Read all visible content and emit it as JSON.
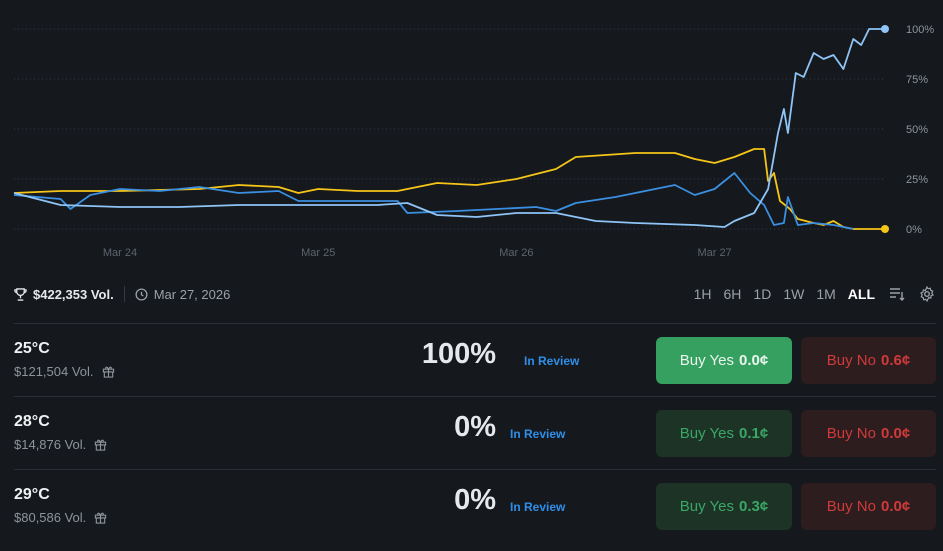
{
  "chart_data": {
    "type": "line",
    "x_unit": "days since Mar 24",
    "xlim": [
      -0.535,
      3.86
    ],
    "ylim": [
      0,
      100
    ],
    "y_ticks": [
      {
        "v": 0,
        "label": "0%"
      },
      {
        "v": 25,
        "label": "25%"
      },
      {
        "v": 50,
        "label": "50%"
      },
      {
        "v": 75,
        "label": "75%"
      },
      {
        "v": 100,
        "label": "100%"
      }
    ],
    "x_ticks": [
      {
        "v": 0,
        "label": "Mar 24"
      },
      {
        "v": 1,
        "label": "Mar 25"
      },
      {
        "v": 2,
        "label": "Mar 26"
      },
      {
        "v": 3,
        "label": "Mar 27"
      }
    ],
    "grid": true,
    "series": [
      {
        "name": "29°C",
        "color": "#f5c518",
        "end_marker": true,
        "points": [
          [
            -0.535,
            18
          ],
          [
            -0.3,
            19
          ],
          [
            0,
            19
          ],
          [
            0.4,
            20
          ],
          [
            0.6,
            22
          ],
          [
            0.8,
            21
          ],
          [
            0.9,
            18
          ],
          [
            1.0,
            20
          ],
          [
            1.2,
            19
          ],
          [
            1.4,
            19
          ],
          [
            1.6,
            23
          ],
          [
            1.8,
            22
          ],
          [
            2.0,
            25
          ],
          [
            2.2,
            30
          ],
          [
            2.3,
            36
          ],
          [
            2.45,
            37
          ],
          [
            2.6,
            38
          ],
          [
            2.8,
            38
          ],
          [
            2.9,
            35
          ],
          [
            3.0,
            33
          ],
          [
            3.1,
            36
          ],
          [
            3.15,
            38
          ],
          [
            3.2,
            40
          ],
          [
            3.25,
            40
          ],
          [
            3.27,
            24
          ],
          [
            3.3,
            28
          ],
          [
            3.33,
            14
          ],
          [
            3.38,
            10
          ],
          [
            3.42,
            5
          ],
          [
            3.5,
            3
          ],
          [
            3.55,
            2
          ],
          [
            3.6,
            4
          ],
          [
            3.65,
            1
          ],
          [
            3.7,
            0
          ],
          [
            3.86,
            0
          ]
        ]
      },
      {
        "name": "28°C",
        "color": "#3b8fe0",
        "end_marker": false,
        "points": [
          [
            -0.535,
            17
          ],
          [
            -0.3,
            15
          ],
          [
            -0.25,
            10
          ],
          [
            -0.15,
            17
          ],
          [
            0,
            20
          ],
          [
            0.2,
            19
          ],
          [
            0.4,
            21
          ],
          [
            0.6,
            18
          ],
          [
            0.8,
            19
          ],
          [
            0.9,
            14
          ],
          [
            1.2,
            14
          ],
          [
            1.4,
            14
          ],
          [
            1.45,
            8
          ],
          [
            1.7,
            9
          ],
          [
            1.9,
            10
          ],
          [
            2.1,
            11
          ],
          [
            2.2,
            9
          ],
          [
            2.3,
            13
          ],
          [
            2.5,
            16
          ],
          [
            2.7,
            20
          ],
          [
            2.8,
            22
          ],
          [
            2.9,
            17
          ],
          [
            3.0,
            20
          ],
          [
            3.05,
            24
          ],
          [
            3.1,
            28
          ],
          [
            3.18,
            18
          ],
          [
            3.25,
            12
          ],
          [
            3.3,
            2
          ],
          [
            3.35,
            3
          ],
          [
            3.37,
            16
          ],
          [
            3.42,
            2
          ],
          [
            3.5,
            3
          ],
          [
            3.6,
            2
          ],
          [
            3.7,
            0
          ]
        ]
      },
      {
        "name": "25°C",
        "color": "#8fc4f7",
        "end_marker": true,
        "points": [
          [
            -0.535,
            18
          ],
          [
            -0.3,
            12
          ],
          [
            0,
            11
          ],
          [
            0.3,
            11
          ],
          [
            0.6,
            12
          ],
          [
            0.9,
            12
          ],
          [
            1.3,
            12
          ],
          [
            1.45,
            13
          ],
          [
            1.6,
            7
          ],
          [
            1.8,
            6
          ],
          [
            2.0,
            8
          ],
          [
            2.2,
            8
          ],
          [
            2.4,
            4
          ],
          [
            2.6,
            3
          ],
          [
            2.9,
            2
          ],
          [
            3.05,
            1
          ],
          [
            3.1,
            4
          ],
          [
            3.2,
            8
          ],
          [
            3.27,
            20
          ],
          [
            3.32,
            48
          ],
          [
            3.35,
            60
          ],
          [
            3.37,
            48
          ],
          [
            3.41,
            78
          ],
          [
            3.45,
            76
          ],
          [
            3.5,
            88
          ],
          [
            3.55,
            85
          ],
          [
            3.6,
            87
          ],
          [
            3.65,
            80
          ],
          [
            3.7,
            95
          ],
          [
            3.74,
            92
          ],
          [
            3.78,
            100
          ],
          [
            3.86,
            100
          ]
        ]
      }
    ]
  },
  "summary": {
    "volume": "$422,353 Vol.",
    "date": "Mar 27, 2026",
    "trophy_icon": "trophy-icon",
    "clock_icon": "clock-icon"
  },
  "ranges": [
    "1H",
    "6H",
    "1D",
    "1W",
    "1M",
    "ALL"
  ],
  "active_range": "ALL",
  "outcomes": [
    {
      "name": "25°C",
      "volume": "$121,504 Vol.",
      "pct": "100%",
      "status": "In Review",
      "yes_label": "Buy Yes",
      "yes_price": "0.0¢",
      "no_label": "Buy No",
      "no_price": "0.6¢"
    },
    {
      "name": "28°C",
      "volume": "$14,876 Vol.",
      "pct": "0%",
      "status": "In Review",
      "yes_label": "Buy Yes",
      "yes_price": "0.1¢",
      "no_label": "Buy No",
      "no_price": "0.0¢"
    },
    {
      "name": "29°C",
      "volume": "$80,586 Vol.",
      "pct": "0%",
      "status": "In Review",
      "yes_label": "Buy Yes",
      "yes_price": "0.3¢",
      "no_label": "Buy No",
      "no_price": "0.0¢"
    }
  ]
}
